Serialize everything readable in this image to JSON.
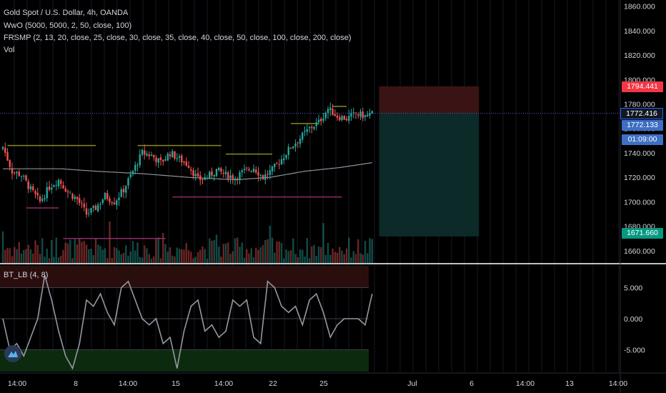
{
  "legend": {
    "symbol": "Gold Spot / U.S. Dollar, 4h, OANDA",
    "ind1": "WwO (5000, 5000, 2, 50, close, 100)",
    "ind2": "FRSMP (2, 13, 20, close, 25, close, 30, close, 35, close, 40, close, 50, close, 100, close, 200, close)",
    "ind3": "Vol",
    "osc": "BT_LB (4, 8)"
  },
  "colors": {
    "background": "#000000",
    "up": "#26a69a",
    "down": "#ef5350",
    "stop_zone": "#3a1414",
    "target_zone": "#0b2a28",
    "last_price_tag": "#3e6fc4",
    "stop_tag": "#f23645",
    "target_tag": "#089981"
  },
  "price_tags": {
    "stop": "1794.441",
    "current": "1772.416",
    "last": "1772.133",
    "countdown": "01:09:00",
    "target": "1671.660"
  },
  "chart_data": [
    {
      "type": "candlestick",
      "symbol": "XAUUSD",
      "timeframe": "4h",
      "ylim": [
        1650,
        1865
      ],
      "y_ticks": [
        1660,
        1680,
        1700,
        1720,
        1740,
        1760,
        1780,
        1800,
        1820,
        1840,
        1860
      ],
      "y_tick_labels": [
        "1660.000",
        "1680.000",
        "1700.000",
        "1720.000",
        "1740.000",
        "1760.000",
        "1780.000",
        "1800.000",
        "1820.000",
        "1840.000",
        "1860.000"
      ],
      "x_tick_labels": [
        "14:00",
        "8",
        "14:00",
        "15",
        "14:00",
        "22",
        "25",
        "Jul",
        "6",
        "14:00",
        "13",
        "14:00"
      ],
      "close_anchors": [
        [
          0,
          1745
        ],
        [
          4,
          1725
        ],
        [
          8,
          1722
        ],
        [
          12,
          1710
        ],
        [
          16,
          1700
        ],
        [
          20,
          1712
        ],
        [
          24,
          1718
        ],
        [
          28,
          1708
        ],
        [
          32,
          1702
        ],
        [
          36,
          1690
        ],
        [
          40,
          1695
        ],
        [
          44,
          1705
        ],
        [
          48,
          1700
        ],
        [
          52,
          1710
        ],
        [
          56,
          1725
        ],
        [
          60,
          1740
        ],
        [
          64,
          1738
        ],
        [
          68,
          1732
        ],
        [
          72,
          1740
        ],
        [
          76,
          1735
        ],
        [
          80,
          1730
        ],
        [
          84,
          1718
        ],
        [
          88,
          1720
        ],
        [
          92,
          1726
        ],
        [
          96,
          1722
        ],
        [
          100,
          1720
        ],
        [
          104,
          1725
        ],
        [
          108,
          1728
        ],
        [
          112,
          1720
        ],
        [
          116,
          1726
        ],
        [
          120,
          1735
        ],
        [
          124,
          1745
        ],
        [
          128,
          1752
        ],
        [
          132,
          1760
        ],
        [
          136,
          1765
        ],
        [
          140,
          1776
        ],
        [
          144,
          1770
        ],
        [
          148,
          1768
        ],
        [
          152,
          1772
        ],
        [
          156,
          1770
        ],
        [
          159,
          1772
        ]
      ],
      "ma": [
        [
          0,
          1727
        ],
        [
          25,
          1727
        ],
        [
          40,
          1725
        ],
        [
          60,
          1723
        ],
        [
          80,
          1720
        ],
        [
          100,
          1718
        ],
        [
          115,
          1720
        ],
        [
          130,
          1725
        ],
        [
          145,
          1728
        ],
        [
          159,
          1732
        ]
      ],
      "resistance_lines": [
        [
          2,
          40,
          1746
        ],
        [
          58,
          94,
          1746
        ],
        [
          96,
          116,
          1739
        ],
        [
          124,
          136,
          1764
        ],
        [
          142,
          148,
          1778
        ]
      ],
      "support_lines": [
        [
          10,
          24,
          1695
        ],
        [
          26,
          70,
          1670
        ],
        [
          73,
          146,
          1704
        ]
      ],
      "position": {
        "entry": 1772.416,
        "stop": 1794.441,
        "target": 1671.66,
        "from_index": 162,
        "to_index": 205
      }
    },
    {
      "type": "line",
      "name": "BT_LB (4, 8)",
      "ylim": [
        -8.5,
        8.5
      ],
      "y_ticks": [
        -5,
        0,
        5
      ],
      "y_tick_labels": [
        "-5.000",
        "0.000",
        "5.000"
      ],
      "bands": [
        5,
        0,
        -5
      ],
      "anchors": [
        [
          0,
          0
        ],
        [
          3,
          -5
        ],
        [
          6,
          -4
        ],
        [
          9,
          -6
        ],
        [
          12,
          -3
        ],
        [
          15,
          0
        ],
        [
          18,
          7
        ],
        [
          21,
          3
        ],
        [
          24,
          -2
        ],
        [
          27,
          -6
        ],
        [
          30,
          -8
        ],
        [
          33,
          -4
        ],
        [
          36,
          3
        ],
        [
          39,
          2
        ],
        [
          42,
          4
        ],
        [
          45,
          1
        ],
        [
          48,
          -1
        ],
        [
          51,
          5
        ],
        [
          54,
          6
        ],
        [
          57,
          3
        ],
        [
          60,
          0
        ],
        [
          63,
          -1
        ],
        [
          66,
          0
        ],
        [
          69,
          -4
        ],
        [
          72,
          -3
        ],
        [
          75,
          -8
        ],
        [
          78,
          -2
        ],
        [
          81,
          2
        ],
        [
          84,
          3
        ],
        [
          87,
          -2
        ],
        [
          90,
          -1
        ],
        [
          93,
          -3
        ],
        [
          96,
          -2
        ],
        [
          99,
          3
        ],
        [
          102,
          2
        ],
        [
          105,
          3
        ],
        [
          108,
          -3
        ],
        [
          111,
          -4
        ],
        [
          114,
          6
        ],
        [
          117,
          5
        ],
        [
          120,
          2
        ],
        [
          123,
          1
        ],
        [
          126,
          2
        ],
        [
          129,
          -1
        ],
        [
          132,
          3
        ],
        [
          135,
          4
        ],
        [
          138,
          1
        ],
        [
          141,
          -3
        ],
        [
          144,
          -1
        ],
        [
          147,
          0
        ],
        [
          150,
          0
        ],
        [
          153,
          0
        ],
        [
          156,
          -1
        ],
        [
          159,
          4
        ]
      ]
    }
  ]
}
